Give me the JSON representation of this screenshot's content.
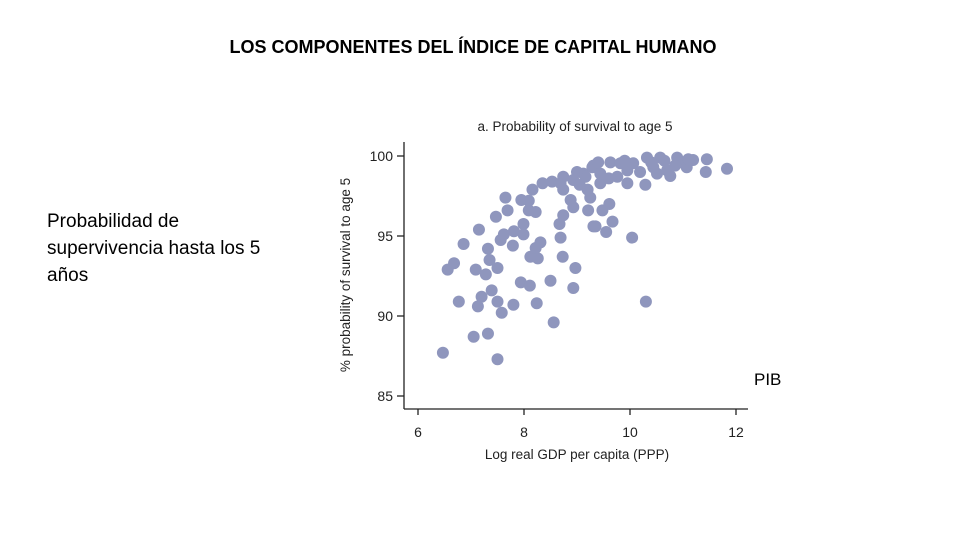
{
  "slide": {
    "title": "LOS COMPONENTES DEL ÍNDICE DE CAPITAL HUMANO",
    "left_text": "Probabilidad de supervivencia hasta los 5 años",
    "pib_label": "PIB"
  },
  "chart_data": {
    "type": "scatter",
    "title": "a. Probability of survival to age 5",
    "xlabel": "Log real GDP per capita (PPP)",
    "ylabel": "% probability of survival to age 5",
    "xlim": [
      6,
      12
    ],
    "ylim": [
      85,
      100
    ],
    "xticks": [
      "6",
      "8",
      "10",
      "12"
    ],
    "yticks": [
      "85",
      "90",
      "95",
      "100"
    ],
    "xtick_values": [
      6,
      8,
      10,
      12
    ],
    "ytick_values": [
      85,
      90,
      95,
      100
    ],
    "grid": false,
    "color": "#8f96bd",
    "points": [
      [
        6.47,
        87.7
      ],
      [
        7.5,
        87.3
      ],
      [
        7.05,
        88.7
      ],
      [
        7.32,
        88.9
      ],
      [
        6.77,
        90.9
      ],
      [
        7.13,
        90.6
      ],
      [
        7.58,
        90.2
      ],
      [
        7.8,
        90.7
      ],
      [
        8.24,
        90.8
      ],
      [
        8.56,
        89.6
      ],
      [
        7.2,
        91.2
      ],
      [
        7.39,
        91.6
      ],
      [
        7.5,
        90.9
      ],
      [
        7.94,
        92.1
      ],
      [
        8.11,
        91.9
      ],
      [
        8.5,
        92.2
      ],
      [
        8.93,
        91.75
      ],
      [
        6.56,
        92.9
      ],
      [
        6.68,
        93.3
      ],
      [
        7.09,
        92.9
      ],
      [
        7.28,
        92.6
      ],
      [
        7.35,
        93.5
      ],
      [
        7.5,
        93.0
      ],
      [
        6.86,
        94.5
      ],
      [
        7.32,
        94.2
      ],
      [
        7.56,
        94.75
      ],
      [
        7.79,
        94.4
      ],
      [
        7.62,
        95.1
      ],
      [
        8.12,
        93.7
      ],
      [
        8.26,
        93.6
      ],
      [
        8.31,
        94.6
      ],
      [
        8.22,
        94.25
      ],
      [
        8.73,
        93.7
      ],
      [
        8.97,
        93.0
      ],
      [
        7.15,
        95.4
      ],
      [
        7.47,
        96.2
      ],
      [
        7.81,
        95.3
      ],
      [
        7.99,
        95.75
      ],
      [
        7.99,
        95.1
      ],
      [
        8.69,
        94.9
      ],
      [
        8.67,
        95.75
      ],
      [
        8.74,
        96.3
      ],
      [
        7.69,
        96.6
      ],
      [
        7.65,
        97.4
      ],
      [
        8.09,
        96.6
      ],
      [
        8.22,
        96.5
      ],
      [
        7.95,
        97.25
      ],
      [
        8.09,
        97.2
      ],
      [
        8.16,
        97.9
      ],
      [
        8.35,
        98.3
      ],
      [
        8.53,
        98.4
      ],
      [
        8.69,
        98.3
      ],
      [
        8.74,
        97.9
      ],
      [
        8.88,
        97.25
      ],
      [
        8.93,
        96.8
      ],
      [
        9.21,
        96.6
      ],
      [
        9.31,
        95.6
      ],
      [
        8.93,
        98.5
      ],
      [
        9.12,
        98.9
      ],
      [
        9.29,
        99.3
      ],
      [
        11.83,
        99.2
      ],
      [
        11.45,
        99.8
      ],
      [
        11.43,
        99.0
      ],
      [
        11.19,
        99.75
      ],
      [
        11.0,
        99.6
      ],
      [
        10.76,
        98.75
      ],
      [
        10.51,
        98.9
      ],
      [
        10.32,
        99.9
      ],
      [
        9.95,
        98.3
      ],
      [
        10.29,
        98.2
      ],
      [
        10.04,
        94.9
      ],
      [
        10.3,
        90.9
      ],
      [
        9.67,
        95.9
      ],
      [
        9.35,
        95.6
      ],
      [
        9.55,
        95.25
      ],
      [
        9.48,
        96.6
      ],
      [
        9.61,
        97.0
      ],
      [
        9.31,
        99.4
      ],
      [
        9.63,
        99.6
      ],
      [
        9.82,
        99.55
      ],
      [
        10.06,
        99.55
      ],
      [
        10.57,
        99.9
      ],
      [
        10.89,
        99.9
      ],
      [
        9.16,
        98.7
      ],
      [
        9.44,
        98.3
      ],
      [
        9.25,
        97.4
      ],
      [
        9.2,
        97.9
      ],
      [
        9.76,
        98.7
      ],
      [
        10.19,
        99.0
      ],
      [
        9.44,
        98.9
      ],
      [
        9.95,
        99.1
      ],
      [
        10.44,
        99.3
      ],
      [
        10.7,
        99.1
      ],
      [
        11.07,
        99.3
      ],
      [
        8.74,
        98.7
      ],
      [
        9.05,
        98.2
      ],
      [
        9.4,
        99.6
      ],
      [
        9.9,
        99.7
      ],
      [
        10.4,
        99.6
      ],
      [
        10.65,
        99.7
      ],
      [
        10.85,
        99.4
      ],
      [
        11.1,
        99.8
      ],
      [
        9.6,
        98.6
      ],
      [
        9.0,
        99.0
      ]
    ]
  }
}
